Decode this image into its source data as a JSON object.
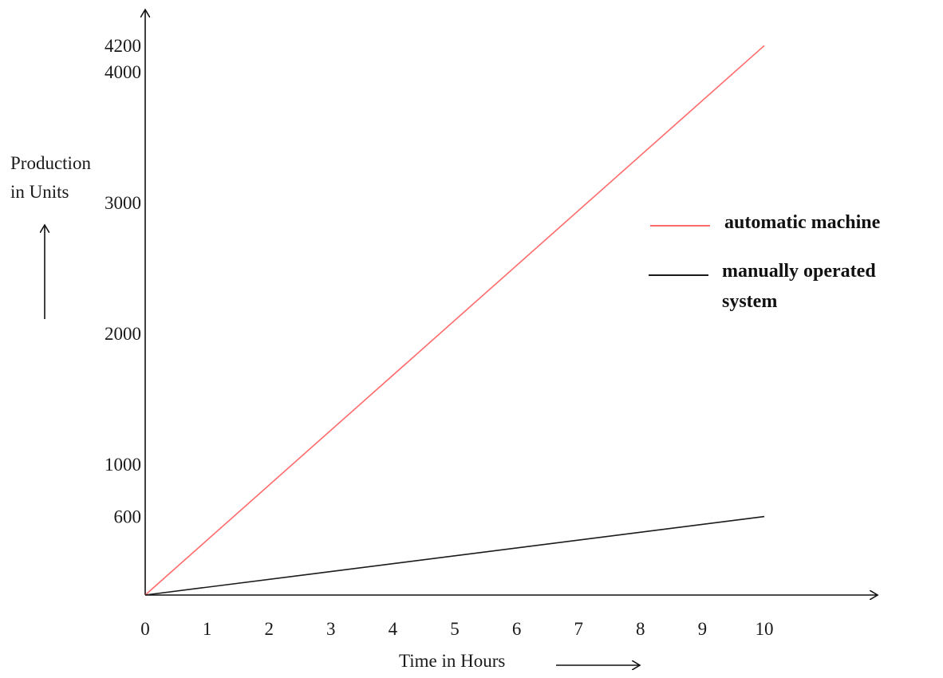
{
  "chart_data": {
    "type": "line",
    "ylabel_line1": "Production",
    "ylabel_line2": "in Units",
    "xlabel": "Time in Hours",
    "x": [
      0,
      10
    ],
    "xticks": [
      "0",
      "1",
      "2",
      "3",
      "4",
      "5",
      "6",
      "7",
      "8",
      "9",
      "10"
    ],
    "yticks": [
      "600",
      "1000",
      "2000",
      "3000",
      "4000",
      "4200"
    ],
    "ytick_values": [
      600,
      1000,
      2000,
      3000,
      4000,
      4200
    ],
    "xlim": [
      0,
      10
    ],
    "ylim": [
      0,
      4200
    ],
    "grid": false,
    "legend_position": "right",
    "series": [
      {
        "name": "automatic machine",
        "x": [
          0,
          10
        ],
        "values": [
          0,
          4200
        ],
        "color": "#ff6b6b"
      },
      {
        "name_line1": "manually operated",
        "name_line2": "system",
        "x": [
          0,
          10
        ],
        "values": [
          0,
          600
        ],
        "color": "#1a1a1a"
      }
    ]
  }
}
